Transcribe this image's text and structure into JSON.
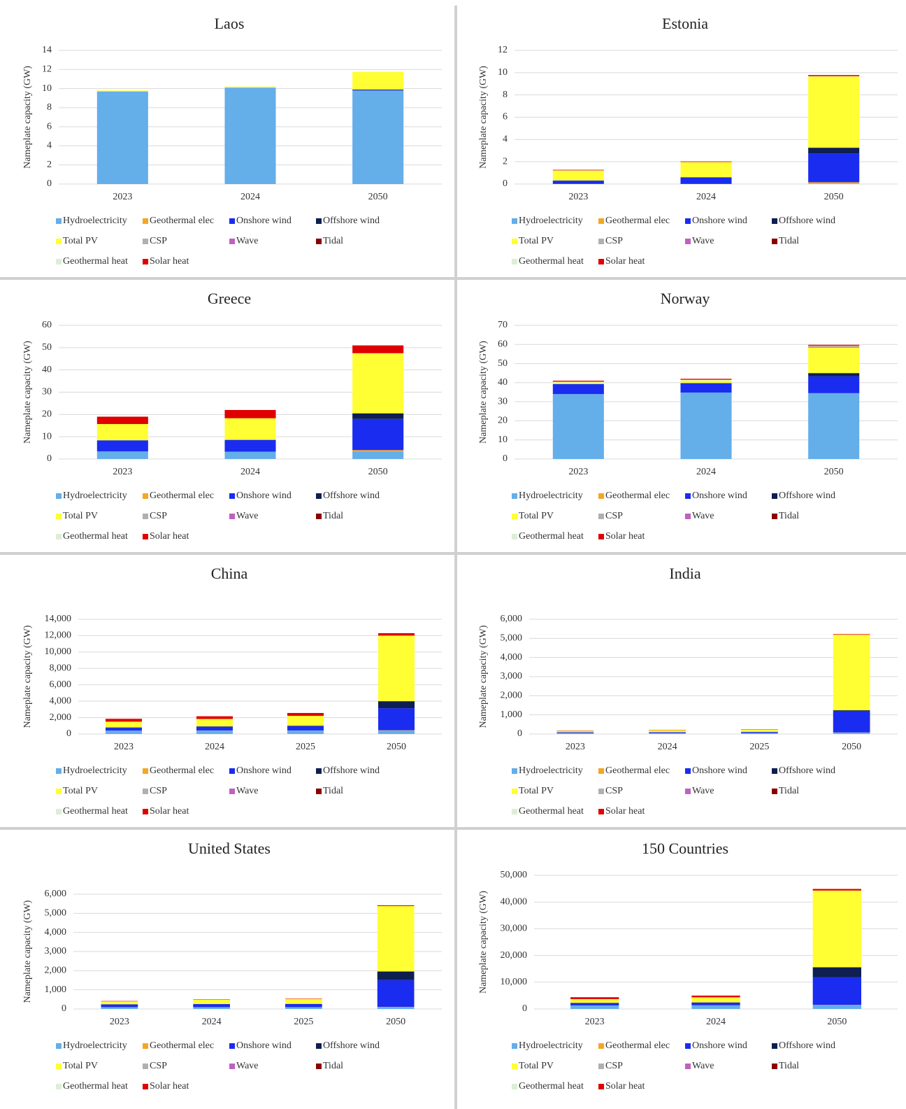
{
  "chart_data": [
    {
      "type": "bar",
      "stacked": true,
      "title": "Laos",
      "ylabel": "Nameplate capacity (GW)",
      "categories": [
        "2023",
        "2024",
        "2050"
      ],
      "ylim": [
        0,
        14
      ],
      "yticks": [
        0,
        2,
        4,
        6,
        8,
        10,
        12,
        14
      ],
      "grid": true,
      "series": [
        {
          "name": "Hydroelectricity",
          "color": "#64aeea",
          "values": [
            9.7,
            10.1,
            9.8
          ]
        },
        {
          "name": "Geothermal elec",
          "color": "#f5a623",
          "values": [
            0,
            0,
            0
          ]
        },
        {
          "name": "Onshore wind",
          "color": "#1a2cf0",
          "values": [
            0,
            0,
            0.05
          ]
        },
        {
          "name": "Offshore wind",
          "color": "#0e1f50",
          "values": [
            0,
            0,
            0.05
          ]
        },
        {
          "name": "Total PV",
          "color": "#ffff33",
          "values": [
            0.1,
            0.1,
            1.85
          ]
        },
        {
          "name": "CSP",
          "color": "#b0b0b0",
          "values": [
            0,
            0,
            0
          ]
        },
        {
          "name": "Wave",
          "color": "#c060c0",
          "values": [
            0,
            0,
            0
          ]
        },
        {
          "name": "Tidal",
          "color": "#8b0000",
          "values": [
            0,
            0,
            0
          ]
        },
        {
          "name": "Geothermal heat",
          "color": "#dcefd6",
          "values": [
            0,
            0,
            0
          ]
        },
        {
          "name": "Solar heat",
          "color": "#e00000",
          "values": [
            0,
            0,
            0
          ]
        }
      ]
    },
    {
      "type": "bar",
      "stacked": true,
      "title": "Estonia",
      "ylabel": "Nameplate capacity (GW)",
      "categories": [
        "2023",
        "2024",
        "2050"
      ],
      "ylim": [
        0,
        12
      ],
      "yticks": [
        0,
        2,
        4,
        6,
        8,
        10,
        12
      ],
      "grid": true,
      "series": [
        {
          "name": "Hydroelectricity",
          "color": "#64aeea",
          "values": [
            0.01,
            0.01,
            0.01
          ]
        },
        {
          "name": "Geothermal elec",
          "color": "#f5a623",
          "values": [
            0,
            0,
            0.15
          ]
        },
        {
          "name": "Onshore wind",
          "color": "#1a2cf0",
          "values": [
            0.3,
            0.6,
            2.6
          ]
        },
        {
          "name": "Offshore wind",
          "color": "#0e1f50",
          "values": [
            0,
            0,
            0.5
          ]
        },
        {
          "name": "Total PV",
          "color": "#ffff33",
          "values": [
            0.9,
            1.35,
            6.4
          ]
        },
        {
          "name": "CSP",
          "color": "#b0b0b0",
          "values": [
            0,
            0,
            0
          ]
        },
        {
          "name": "Wave",
          "color": "#c060c0",
          "values": [
            0,
            0,
            0
          ]
        },
        {
          "name": "Tidal",
          "color": "#8b0000",
          "values": [
            0,
            0,
            0
          ]
        },
        {
          "name": "Geothermal heat",
          "color": "#dcefd6",
          "values": [
            0.02,
            0.02,
            0.02
          ]
        },
        {
          "name": "Solar heat",
          "color": "#e00000",
          "values": [
            0.05,
            0.05,
            0.1
          ]
        }
      ]
    },
    {
      "type": "bar",
      "stacked": true,
      "title": "Greece",
      "ylabel": "Nameplate capacity (GW)",
      "categories": [
        "2023",
        "2024",
        "2050"
      ],
      "ylim": [
        0,
        60
      ],
      "yticks": [
        0,
        10,
        20,
        30,
        40,
        50,
        60
      ],
      "grid": true,
      "series": [
        {
          "name": "Hydroelectricity",
          "color": "#64aeea",
          "values": [
            3.4,
            3.3,
            3.4
          ]
        },
        {
          "name": "Geothermal elec",
          "color": "#f5a623",
          "values": [
            0,
            0,
            0.6
          ]
        },
        {
          "name": "Onshore wind",
          "color": "#1a2cf0",
          "values": [
            5,
            5.3,
            14
          ]
        },
        {
          "name": "Offshore wind",
          "color": "#0e1f50",
          "values": [
            0,
            0,
            2.5
          ]
        },
        {
          "name": "Total PV",
          "color": "#ffff33",
          "values": [
            7.3,
            9.7,
            27
          ]
        },
        {
          "name": "CSP",
          "color": "#b0b0b0",
          "values": [
            0,
            0,
            0
          ]
        },
        {
          "name": "Wave",
          "color": "#c060c0",
          "values": [
            0,
            0,
            0
          ]
        },
        {
          "name": "Tidal",
          "color": "#8b0000",
          "values": [
            0,
            0,
            0
          ]
        },
        {
          "name": "Geothermal heat",
          "color": "#dcefd6",
          "values": [
            0,
            0,
            0
          ]
        },
        {
          "name": "Solar heat",
          "color": "#e00000",
          "values": [
            3.3,
            3.7,
            3.5
          ]
        }
      ]
    },
    {
      "type": "bar",
      "stacked": true,
      "title": "Norway",
      "ylabel": "Nameplate capacity (GW)",
      "categories": [
        "2023",
        "2024",
        "2050"
      ],
      "ylim": [
        0,
        70
      ],
      "yticks": [
        0,
        10,
        20,
        30,
        40,
        50,
        60,
        70
      ],
      "grid": true,
      "series": [
        {
          "name": "Hydroelectricity",
          "color": "#64aeea",
          "values": [
            34,
            34.8,
            34.5
          ]
        },
        {
          "name": "Geothermal elec",
          "color": "#f5a623",
          "values": [
            0,
            0,
            0
          ]
        },
        {
          "name": "Onshore wind",
          "color": "#1a2cf0",
          "values": [
            5.2,
            4.9,
            8.8
          ]
        },
        {
          "name": "Offshore wind",
          "color": "#0e1f50",
          "values": [
            0.1,
            0.1,
            1.7
          ]
        },
        {
          "name": "Total PV",
          "color": "#ffff33",
          "values": [
            0.8,
            1.3,
            13.5
          ]
        },
        {
          "name": "CSP",
          "color": "#b0b0b0",
          "values": [
            0,
            0,
            0
          ]
        },
        {
          "name": "Wave",
          "color": "#c060c0",
          "values": [
            0,
            0,
            0
          ]
        },
        {
          "name": "Tidal",
          "color": "#8b0000",
          "values": [
            0,
            0,
            0.3
          ]
        },
        {
          "name": "Geothermal heat",
          "color": "#dcefd6",
          "values": [
            0.4,
            0.4,
            0.5
          ]
        },
        {
          "name": "Solar heat",
          "color": "#e00000",
          "values": [
            0.5,
            0.5,
            0.5
          ]
        }
      ]
    },
    {
      "type": "bar",
      "stacked": true,
      "title": "China",
      "ylabel": "Nameplate capacity (GW)",
      "categories": [
        "2023",
        "2024",
        "2025",
        "2050"
      ],
      "ylim": [
        0,
        14000
      ],
      "yticks": [
        0,
        {
          "value": 2000,
          "label": "2,000"
        },
        {
          "value": 4000,
          "label": "4,000"
        },
        {
          "value": 6000,
          "label": "6,000"
        },
        {
          "value": 8000,
          "label": "8,000"
        },
        {
          "value": 10000,
          "label": "10,000"
        },
        {
          "value": 12000,
          "label": "12,000"
        },
        {
          "value": 14000,
          "label": "14,000"
        }
      ],
      "grid": true,
      "series": [
        {
          "name": "Hydroelectricity",
          "color": "#64aeea",
          "values": [
            400,
            420,
            420,
            400
          ]
        },
        {
          "name": "Geothermal elec",
          "color": "#f5a623",
          "values": [
            10,
            10,
            10,
            50
          ]
        },
        {
          "name": "Onshore wind",
          "color": "#1a2cf0",
          "values": [
            350,
            450,
            520,
            2700
          ]
        },
        {
          "name": "Offshore wind",
          "color": "#0e1f50",
          "values": [
            40,
            50,
            60,
            850
          ]
        },
        {
          "name": "Total PV",
          "color": "#ffff33",
          "values": [
            700,
            900,
            1200,
            8000
          ]
        },
        {
          "name": "CSP",
          "color": "#b0b0b0",
          "values": [
            0,
            0,
            0,
            0
          ]
        },
        {
          "name": "Wave",
          "color": "#c060c0",
          "values": [
            0,
            0,
            0,
            0
          ]
        },
        {
          "name": "Tidal",
          "color": "#8b0000",
          "values": [
            0,
            0,
            0,
            0
          ]
        },
        {
          "name": "Geothermal heat",
          "color": "#dcefd6",
          "values": [
            0,
            0,
            0,
            0
          ]
        },
        {
          "name": "Solar heat",
          "color": "#e00000",
          "values": [
            350,
            330,
            350,
            300
          ]
        }
      ]
    },
    {
      "type": "bar",
      "stacked": true,
      "title": "India",
      "ylabel": "Nameplate capacity (GW)",
      "categories": [
        "2023",
        "2024",
        "2025",
        "2050"
      ],
      "ylim": [
        0,
        6000
      ],
      "yticks": [
        0,
        {
          "value": 1000,
          "label": "1,000"
        },
        {
          "value": 2000,
          "label": "2,000"
        },
        {
          "value": 3000,
          "label": "3,000"
        },
        {
          "value": 4000,
          "label": "4,000"
        },
        {
          "value": 5000,
          "label": "5,000"
        },
        {
          "value": 6000,
          "label": "6,000"
        }
      ],
      "grid": true,
      "series": [
        {
          "name": "Hydroelectricity",
          "color": "#64aeea",
          "values": [
            50,
            52,
            55,
            70
          ]
        },
        {
          "name": "Geothermal elec",
          "color": "#f5a623",
          "values": [
            0,
            0,
            0,
            10
          ]
        },
        {
          "name": "Onshore wind",
          "color": "#1a2cf0",
          "values": [
            45,
            48,
            52,
            1100
          ]
        },
        {
          "name": "Offshore wind",
          "color": "#0e1f50",
          "values": [
            0,
            0,
            0,
            60
          ]
        },
        {
          "name": "Total PV",
          "color": "#ffff33",
          "values": [
            70,
            100,
            130,
            3950
          ]
        },
        {
          "name": "CSP",
          "color": "#b0b0b0",
          "values": [
            0,
            0,
            0,
            0
          ]
        },
        {
          "name": "Wave",
          "color": "#c060c0",
          "values": [
            0,
            0,
            0,
            0
          ]
        },
        {
          "name": "Tidal",
          "color": "#8b0000",
          "values": [
            0,
            0,
            0,
            0
          ]
        },
        {
          "name": "Geothermal heat",
          "color": "#dcefd6",
          "values": [
            0,
            0,
            0,
            0
          ]
        },
        {
          "name": "Solar heat",
          "color": "#e00000",
          "values": [
            15,
            15,
            15,
            30
          ]
        }
      ]
    },
    {
      "type": "bar",
      "stacked": true,
      "title": "United States",
      "ylabel": "Nameplate capacity (GW)",
      "categories": [
        "2023",
        "2024",
        "2025",
        "2050"
      ],
      "ylim": [
        0,
        6000
      ],
      "yticks": [
        0,
        {
          "value": 1000,
          "label": "1,000"
        },
        {
          "value": 2000,
          "label": "2,000"
        },
        {
          "value": 3000,
          "label": "3,000"
        },
        {
          "value": 4000,
          "label": "4,000"
        },
        {
          "value": 5000,
          "label": "5,000"
        },
        {
          "value": 6000,
          "label": "6,000"
        }
      ],
      "grid": true,
      "series": [
        {
          "name": "Hydroelectricity",
          "color": "#64aeea",
          "values": [
            90,
            90,
            90,
            90
          ]
        },
        {
          "name": "Geothermal elec",
          "color": "#f5a623",
          "values": [
            5,
            5,
            5,
            20
          ]
        },
        {
          "name": "Onshore wind",
          "color": "#1a2cf0",
          "values": [
            150,
            160,
            170,
            1400
          ]
        },
        {
          "name": "Offshore wind",
          "color": "#0e1f50",
          "values": [
            0,
            0,
            0,
            450
          ]
        },
        {
          "name": "Total PV",
          "color": "#ffff33",
          "values": [
            150,
            220,
            260,
            3420
          ]
        },
        {
          "name": "CSP",
          "color": "#b0b0b0",
          "values": [
            0,
            0,
            0,
            0
          ]
        },
        {
          "name": "Wave",
          "color": "#c060c0",
          "values": [
            0,
            0,
            0,
            0
          ]
        },
        {
          "name": "Tidal",
          "color": "#8b0000",
          "values": [
            0,
            0,
            0,
            0
          ]
        },
        {
          "name": "Geothermal heat",
          "color": "#dcefd6",
          "values": [
            0,
            0,
            0,
            0
          ]
        },
        {
          "name": "Solar heat",
          "color": "#e00000",
          "values": [
            20,
            20,
            20,
            40
          ]
        }
      ]
    },
    {
      "type": "bar",
      "stacked": true,
      "title": "150 Countries",
      "ylabel": "Nameplate capacity (GW)",
      "categories": [
        "2023",
        "2024",
        "2050"
      ],
      "ylim": [
        0,
        50000
      ],
      "yticks": [
        0,
        {
          "value": 10000,
          "label": "10,000"
        },
        {
          "value": 20000,
          "label": "20,000"
        },
        {
          "value": 30000,
          "label": "30,000"
        },
        {
          "value": 40000,
          "label": "40,000"
        },
        {
          "value": 50000,
          "label": "50,000"
        }
      ],
      "grid": true,
      "series": [
        {
          "name": "Hydroelectricity",
          "color": "#64aeea",
          "values": [
            1300,
            1350,
            1400
          ]
        },
        {
          "name": "Geothermal elec",
          "color": "#f5a623",
          "values": [
            20,
            20,
            100
          ]
        },
        {
          "name": "Onshore wind",
          "color": "#1a2cf0",
          "values": [
            900,
            1000,
            10400
          ]
        },
        {
          "name": "Offshore wind",
          "color": "#0e1f50",
          "values": [
            70,
            80,
            3700
          ]
        },
        {
          "name": "Total PV",
          "color": "#ffff33",
          "values": [
            1400,
            1900,
            28700
          ]
        },
        {
          "name": "CSP",
          "color": "#b0b0b0",
          "values": [
            0,
            0,
            0
          ]
        },
        {
          "name": "Wave",
          "color": "#c060c0",
          "values": [
            0,
            0,
            0
          ]
        },
        {
          "name": "Tidal",
          "color": "#8b0000",
          "values": [
            0,
            0,
            0
          ]
        },
        {
          "name": "Geothermal heat",
          "color": "#dcefd6",
          "values": [
            0,
            0,
            0
          ]
        },
        {
          "name": "Solar heat",
          "color": "#e00000",
          "values": [
            700,
            650,
            600
          ]
        }
      ]
    }
  ]
}
